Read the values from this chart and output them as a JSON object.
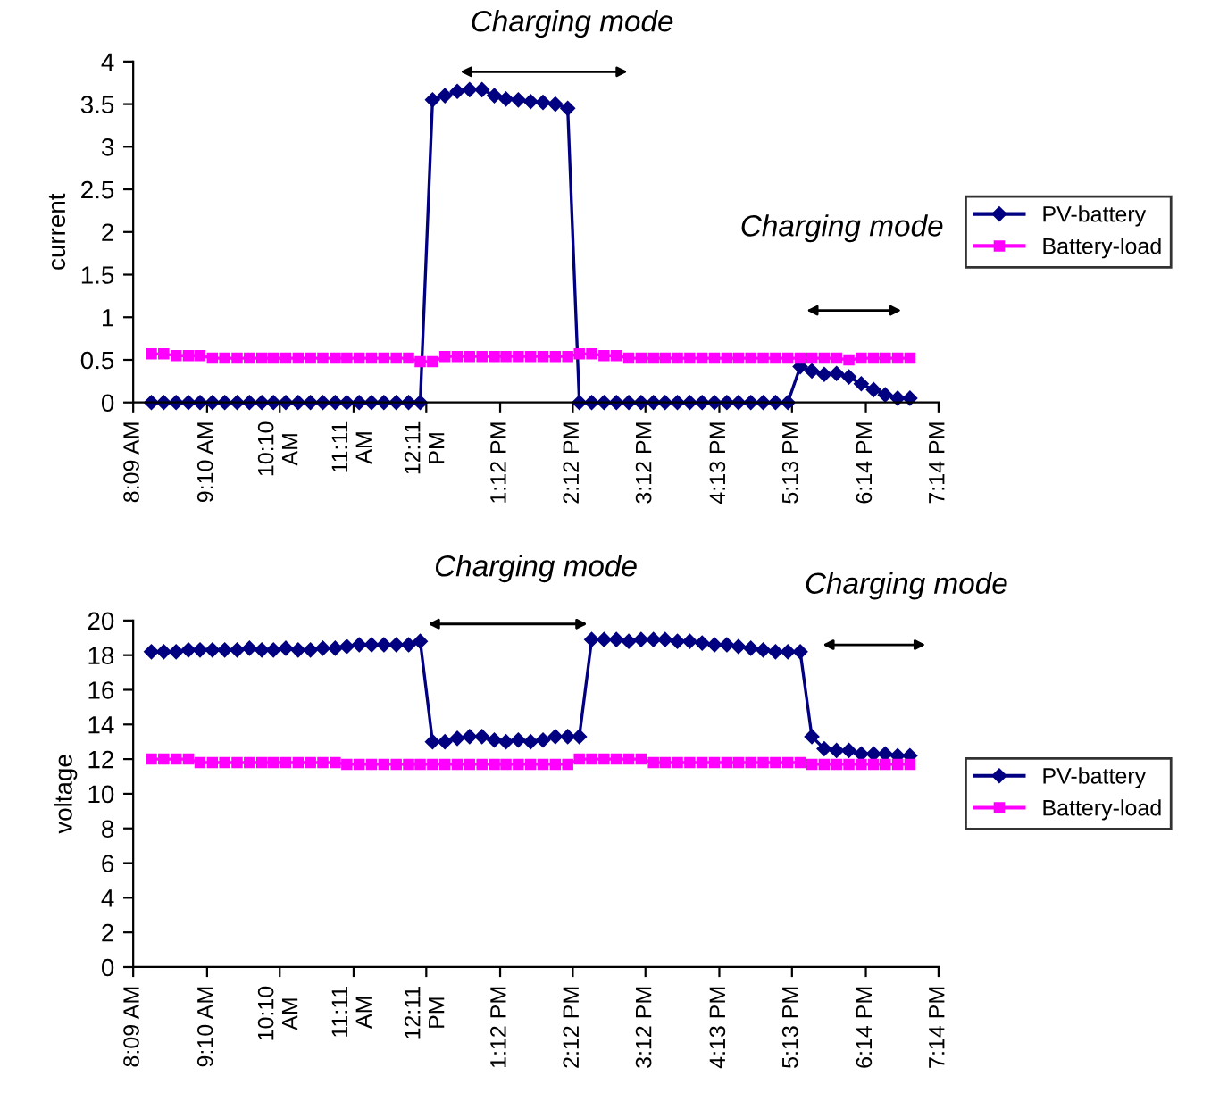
{
  "chart_data": [
    {
      "type": "line",
      "ylabel": "current",
      "legend": "right",
      "grid": false,
      "xlim": [
        8.15,
        19.2333
      ],
      "xticks": [
        {
          "value": 8.15,
          "label": "8:09 AM"
        },
        {
          "value": 9.1667,
          "label": "9:10 AM"
        },
        {
          "value": 10.1667,
          "label": "10:10\nAM"
        },
        {
          "value": 11.1833,
          "label": "11:11\nAM"
        },
        {
          "value": 12.1833,
          "label": "12:11\nPM"
        },
        {
          "value": 13.2,
          "label": "1:12 PM"
        },
        {
          "value": 14.2,
          "label": "2:12 PM"
        },
        {
          "value": 15.2,
          "label": "3:12 PM"
        },
        {
          "value": 16.2167,
          "label": "4:13 PM"
        },
        {
          "value": 17.2167,
          "label": "5:13 PM"
        },
        {
          "value": 18.2333,
          "label": "6:14 PM"
        },
        {
          "value": 19.2333,
          "label": "7:14 PM"
        }
      ],
      "ylim": [
        0,
        4
      ],
      "yticks": [
        0,
        0.5,
        1,
        1.5,
        2,
        2.5,
        3,
        3.5,
        4
      ],
      "annotations": [
        "Charging mode",
        "Charging mode"
      ],
      "x": [
        8.4,
        8.57,
        8.74,
        8.91,
        9.07,
        9.24,
        9.41,
        9.58,
        9.75,
        9.92,
        10.08,
        10.25,
        10.42,
        10.59,
        10.76,
        10.93,
        11.09,
        11.26,
        11.43,
        11.6,
        11.77,
        11.94,
        12.1,
        12.27,
        12.44,
        12.61,
        12.78,
        12.95,
        13.12,
        13.28,
        13.45,
        13.62,
        13.79,
        13.96,
        14.13,
        14.29,
        14.46,
        14.63,
        14.8,
        14.97,
        15.14,
        15.31,
        15.47,
        15.64,
        15.81,
        15.98,
        16.15,
        16.32,
        16.48,
        16.65,
        16.82,
        16.99,
        17.16,
        17.33,
        17.49,
        17.66,
        17.83,
        18.0,
        18.17,
        18.34,
        18.5,
        18.67,
        18.84
      ],
      "series": [
        {
          "name": "PV-battery",
          "color": "#000080",
          "marker": "diamond",
          "values": [
            0,
            0,
            0,
            0,
            0,
            0,
            0,
            0,
            0,
            0,
            0,
            0,
            0,
            0,
            0,
            0,
            0,
            0,
            0,
            0,
            0,
            0,
            0,
            3.55,
            3.6,
            3.65,
            3.67,
            3.67,
            3.6,
            3.56,
            3.55,
            3.53,
            3.52,
            3.5,
            3.45,
            0,
            0,
            0,
            0,
            0,
            0,
            0,
            0,
            0,
            0,
            0,
            0,
            0,
            0,
            0,
            0,
            0,
            0,
            0.42,
            0.37,
            0.33,
            0.34,
            0.3,
            0.22,
            0.15,
            0.09,
            0.05,
            0.05
          ]
        },
        {
          "name": "Battery-load",
          "color": "#ff00ff",
          "marker": "square",
          "values": [
            0.57,
            0.57,
            0.55,
            0.55,
            0.55,
            0.52,
            0.52,
            0.52,
            0.52,
            0.52,
            0.52,
            0.52,
            0.52,
            0.52,
            0.52,
            0.52,
            0.52,
            0.52,
            0.52,
            0.52,
            0.52,
            0.52,
            0.48,
            0.48,
            0.54,
            0.54,
            0.54,
            0.54,
            0.54,
            0.54,
            0.54,
            0.54,
            0.54,
            0.54,
            0.54,
            0.57,
            0.57,
            0.55,
            0.55,
            0.52,
            0.52,
            0.52,
            0.52,
            0.52,
            0.52,
            0.52,
            0.52,
            0.52,
            0.52,
            0.52,
            0.52,
            0.52,
            0.52,
            0.52,
            0.52,
            0.52,
            0.52,
            0.5,
            0.52,
            0.52,
            0.52,
            0.52,
            0.52
          ]
        }
      ]
    },
    {
      "type": "line",
      "ylabel": "voltage",
      "legend": "right",
      "grid": false,
      "xlim": [
        8.15,
        19.2333
      ],
      "xticks": [
        {
          "value": 8.15,
          "label": "8:09 AM"
        },
        {
          "value": 9.1667,
          "label": "9:10 AM"
        },
        {
          "value": 10.1667,
          "label": "10:10\nAM"
        },
        {
          "value": 11.1833,
          "label": "11:11\nAM"
        },
        {
          "value": 12.1833,
          "label": "12:11\nPM"
        },
        {
          "value": 13.2,
          "label": "1:12 PM"
        },
        {
          "value": 14.2,
          "label": "2:12 PM"
        },
        {
          "value": 15.2,
          "label": "3:12 PM"
        },
        {
          "value": 16.2167,
          "label": "4:13 PM"
        },
        {
          "value": 17.2167,
          "label": "5:13 PM"
        },
        {
          "value": 18.2333,
          "label": "6:14 PM"
        },
        {
          "value": 19.2333,
          "label": "7:14 PM"
        }
      ],
      "ylim": [
        0,
        20
      ],
      "yticks": [
        0,
        2,
        4,
        6,
        8,
        10,
        12,
        14,
        16,
        18,
        20
      ],
      "annotations": [
        "Charging mode",
        "Charging mode"
      ],
      "x": [
        8.4,
        8.57,
        8.74,
        8.91,
        9.07,
        9.24,
        9.41,
        9.58,
        9.75,
        9.92,
        10.08,
        10.25,
        10.42,
        10.59,
        10.76,
        10.93,
        11.09,
        11.26,
        11.43,
        11.6,
        11.77,
        11.94,
        12.1,
        12.27,
        12.44,
        12.61,
        12.78,
        12.95,
        13.12,
        13.28,
        13.45,
        13.62,
        13.79,
        13.96,
        14.13,
        14.29,
        14.46,
        14.63,
        14.8,
        14.97,
        15.14,
        15.31,
        15.47,
        15.64,
        15.81,
        15.98,
        16.15,
        16.32,
        16.48,
        16.65,
        16.82,
        16.99,
        17.16,
        17.33,
        17.49,
        17.66,
        17.83,
        18.0,
        18.17,
        18.34,
        18.5,
        18.67,
        18.84
      ],
      "series": [
        {
          "name": "PV-battery",
          "color": "#000080",
          "marker": "diamond",
          "values": [
            18.2,
            18.2,
            18.2,
            18.3,
            18.3,
            18.3,
            18.3,
            18.3,
            18.4,
            18.3,
            18.3,
            18.4,
            18.3,
            18.3,
            18.4,
            18.4,
            18.5,
            18.6,
            18.6,
            18.6,
            18.6,
            18.6,
            18.8,
            13.0,
            13.0,
            13.2,
            13.3,
            13.3,
            13.1,
            13.0,
            13.1,
            13.0,
            13.1,
            13.3,
            13.3,
            13.3,
            18.9,
            18.9,
            18.9,
            18.8,
            18.9,
            18.9,
            18.9,
            18.8,
            18.8,
            18.7,
            18.6,
            18.6,
            18.5,
            18.4,
            18.3,
            18.2,
            18.2,
            18.2,
            13.3,
            12.6,
            12.5,
            12.5,
            12.3,
            12.3,
            12.3,
            12.2,
            12.2
          ]
        },
        {
          "name": "Battery-load",
          "color": "#ff00ff",
          "marker": "square",
          "values": [
            12.0,
            12.0,
            12.0,
            12.0,
            11.8,
            11.8,
            11.8,
            11.8,
            11.8,
            11.8,
            11.8,
            11.8,
            11.8,
            11.8,
            11.8,
            11.8,
            11.7,
            11.7,
            11.7,
            11.7,
            11.7,
            11.7,
            11.7,
            11.7,
            11.7,
            11.7,
            11.7,
            11.7,
            11.7,
            11.7,
            11.7,
            11.7,
            11.7,
            11.7,
            11.7,
            12.0,
            12.0,
            12.0,
            12.0,
            12.0,
            12.0,
            11.8,
            11.8,
            11.8,
            11.8,
            11.8,
            11.8,
            11.8,
            11.8,
            11.8,
            11.8,
            11.8,
            11.8,
            11.8,
            11.7,
            11.7,
            11.7,
            11.7,
            11.7,
            11.7,
            11.7,
            11.7,
            11.7
          ]
        }
      ]
    }
  ]
}
